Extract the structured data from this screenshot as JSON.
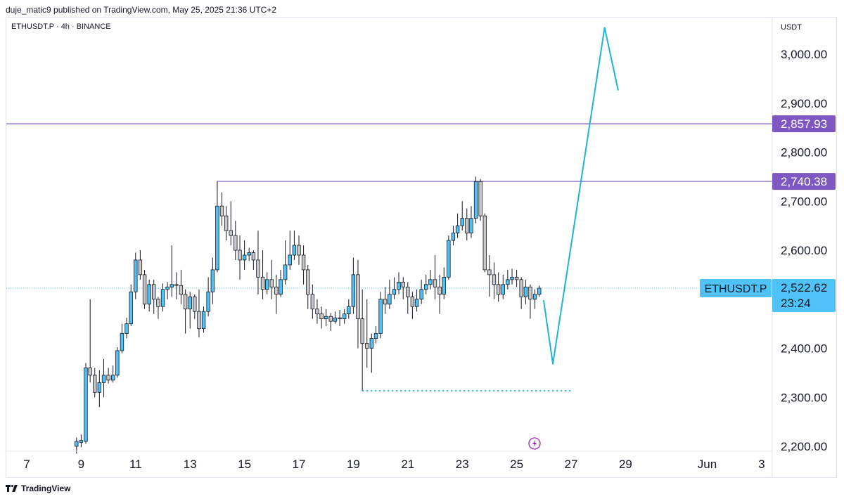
{
  "header": {
    "published": "duje_matic9 published on TradingView.com, May 25, 2025 21:36 UTC+2",
    "symbol_line": "ETHUSDT.P · 4h · BINANCE"
  },
  "footer": {
    "brand": "TradingView"
  },
  "colors": {
    "up": "#4fc3f7",
    "down": "#c9c9c9",
    "wick": "#131722",
    "level": "#7e57c2",
    "projection": "#1fb5d0",
    "price_tag": "#4fc3f7"
  },
  "chart_data": {
    "type": "candlestick",
    "currency": "USDT",
    "y_ticks": [
      "3,000.00",
      "2,900.00",
      "2,800.00",
      "2,700.00",
      "2,600.00",
      "2,400.00",
      "2,300.00",
      "2,200.00"
    ],
    "y_tick_values": [
      3000,
      2900,
      2800,
      2700,
      2600,
      2400,
      2300,
      2200
    ],
    "x_ticks": [
      "7",
      "9",
      "11",
      "13",
      "15",
      "17",
      "19",
      "21",
      "23",
      "25",
      "27",
      "29",
      "Jun",
      "3"
    ],
    "levels": [
      {
        "price": 2857.93,
        "label": "2,857.93"
      },
      {
        "price": 2740.38,
        "label": "2,740.38"
      }
    ],
    "support_price": 2313,
    "current": {
      "symbol": "ETHUSDT.P",
      "price_label": "2,522.62",
      "price": 2522.62,
      "countdown": "23:24"
    },
    "projection_path": [
      {
        "day": 25.99,
        "price": 2498
      },
      {
        "day": 26.33,
        "price": 2368
      },
      {
        "day": 28.23,
        "price": 3054
      },
      {
        "day": 28.73,
        "price": 2926
      }
    ],
    "candles": [
      [
        8.83,
        2200,
        2210,
        2185,
        2218
      ],
      [
        9.0,
        2208,
        2212,
        2198,
        2224
      ],
      [
        9.17,
        2210,
        2360,
        2205,
        2370
      ],
      [
        9.33,
        2360,
        2345,
        2330,
        2500
      ],
      [
        9.5,
        2345,
        2310,
        2300,
        2360
      ],
      [
        9.67,
        2310,
        2330,
        2280,
        2355
      ],
      [
        9.83,
        2330,
        2345,
        2300,
        2378
      ],
      [
        10.0,
        2345,
        2335,
        2328,
        2360
      ],
      [
        10.17,
        2335,
        2345,
        2330,
        2365
      ],
      [
        10.33,
        2345,
        2395,
        2340,
        2402
      ],
      [
        10.5,
        2395,
        2430,
        2390,
        2450
      ],
      [
        10.67,
        2430,
        2450,
        2420,
        2462
      ],
      [
        10.83,
        2450,
        2515,
        2445,
        2530
      ],
      [
        11.0,
        2515,
        2580,
        2500,
        2595
      ],
      [
        11.17,
        2580,
        2550,
        2540,
        2600
      ],
      [
        11.33,
        2550,
        2490,
        2480,
        2560
      ],
      [
        11.5,
        2490,
        2530,
        2475,
        2540
      ],
      [
        11.67,
        2530,
        2500,
        2470,
        2540
      ],
      [
        11.83,
        2500,
        2485,
        2460,
        2505
      ],
      [
        12.0,
        2485,
        2520,
        2475,
        2532
      ],
      [
        12.17,
        2520,
        2525,
        2500,
        2535
      ],
      [
        12.33,
        2525,
        2530,
        2505,
        2610
      ],
      [
        12.5,
        2530,
        2528,
        2500,
        2555
      ],
      [
        12.67,
        2528,
        2510,
        2490,
        2560
      ],
      [
        12.83,
        2510,
        2480,
        2430,
        2520
      ],
      [
        13.0,
        2480,
        2505,
        2440,
        2515
      ],
      [
        13.17,
        2505,
        2475,
        2460,
        2510
      ],
      [
        13.33,
        2475,
        2440,
        2422,
        2520
      ],
      [
        13.5,
        2440,
        2475,
        2432,
        2485
      ],
      [
        13.67,
        2475,
        2515,
        2465,
        2545
      ],
      [
        13.83,
        2515,
        2560,
        2490,
        2585
      ],
      [
        14.0,
        2560,
        2690,
        2555,
        2740
      ],
      [
        14.17,
        2690,
        2670,
        2650,
        2718
      ],
      [
        14.33,
        2670,
        2640,
        2620,
        2690
      ],
      [
        14.5,
        2640,
        2630,
        2610,
        2700
      ],
      [
        14.67,
        2630,
        2600,
        2580,
        2660
      ],
      [
        14.83,
        2600,
        2580,
        2540,
        2630
      ],
      [
        15.0,
        2580,
        2590,
        2560,
        2620
      ],
      [
        15.17,
        2590,
        2595,
        2578,
        2605
      ],
      [
        15.33,
        2595,
        2580,
        2560,
        2600
      ],
      [
        15.5,
        2580,
        2545,
        2510,
        2640
      ],
      [
        15.67,
        2545,
        2520,
        2500,
        2600
      ],
      [
        15.83,
        2520,
        2540,
        2510,
        2555
      ],
      [
        16.0,
        2540,
        2525,
        2500,
        2580
      ],
      [
        16.17,
        2525,
        2510,
        2470,
        2550
      ],
      [
        16.33,
        2510,
        2540,
        2505,
        2560
      ],
      [
        16.5,
        2540,
        2570,
        2530,
        2620
      ],
      [
        16.67,
        2570,
        2590,
        2560,
        2640
      ],
      [
        16.83,
        2590,
        2610,
        2580,
        2640
      ],
      [
        17.0,
        2610,
        2590,
        2570,
        2630
      ],
      [
        17.17,
        2590,
        2560,
        2530,
        2610
      ],
      [
        17.33,
        2560,
        2510,
        2480,
        2570
      ],
      [
        17.5,
        2510,
        2480,
        2460,
        2530
      ],
      [
        17.67,
        2480,
        2470,
        2450,
        2500
      ],
      [
        17.83,
        2470,
        2460,
        2440,
        2485
      ],
      [
        18.0,
        2460,
        2465,
        2445,
        2480
      ],
      [
        18.17,
        2465,
        2455,
        2435,
        2472
      ],
      [
        18.33,
        2455,
        2462,
        2450,
        2475
      ],
      [
        18.5,
        2462,
        2460,
        2445,
        2478
      ],
      [
        18.67,
        2460,
        2470,
        2450,
        2480
      ],
      [
        18.83,
        2470,
        2485,
        2460,
        2500
      ],
      [
        19.0,
        2485,
        2550,
        2470,
        2585
      ],
      [
        19.17,
        2550,
        2460,
        2400,
        2580
      ],
      [
        19.33,
        2460,
        2410,
        2313,
        2520
      ],
      [
        19.5,
        2410,
        2400,
        2360,
        2500
      ],
      [
        19.67,
        2400,
        2420,
        2350,
        2430
      ],
      [
        19.83,
        2420,
        2430,
        2410,
        2445
      ],
      [
        20.0,
        2430,
        2500,
        2420,
        2515
      ],
      [
        20.17,
        2500,
        2490,
        2470,
        2525
      ],
      [
        20.33,
        2490,
        2510,
        2480,
        2540
      ],
      [
        20.5,
        2510,
        2520,
        2500,
        2545
      ],
      [
        20.67,
        2520,
        2535,
        2510,
        2555
      ],
      [
        20.83,
        2535,
        2525,
        2500,
        2545
      ],
      [
        21.0,
        2525,
        2505,
        2470,
        2535
      ],
      [
        21.17,
        2505,
        2485,
        2460,
        2515
      ],
      [
        21.33,
        2485,
        2500,
        2475,
        2520
      ],
      [
        21.5,
        2500,
        2520,
        2490,
        2540
      ],
      [
        21.67,
        2520,
        2530,
        2510,
        2550
      ],
      [
        21.83,
        2530,
        2540,
        2520,
        2560
      ],
      [
        22.0,
        2540,
        2525,
        2500,
        2590
      ],
      [
        22.17,
        2525,
        2510,
        2470,
        2550
      ],
      [
        22.33,
        2510,
        2545,
        2500,
        2565
      ],
      [
        22.5,
        2545,
        2620,
        2540,
        2630
      ],
      [
        22.67,
        2620,
        2635,
        2610,
        2650
      ],
      [
        22.83,
        2635,
        2650,
        2625,
        2675
      ],
      [
        23.0,
        2650,
        2665,
        2640,
        2700
      ],
      [
        23.17,
        2665,
        2635,
        2620,
        2685
      ],
      [
        23.33,
        2635,
        2665,
        2625,
        2690
      ],
      [
        23.5,
        2665,
        2740,
        2655,
        2750
      ],
      [
        23.67,
        2740,
        2670,
        2660,
        2745
      ],
      [
        23.83,
        2670,
        2560,
        2555,
        2675
      ],
      [
        24.0,
        2560,
        2550,
        2505,
        2590
      ],
      [
        24.17,
        2550,
        2530,
        2500,
        2575
      ],
      [
        24.33,
        2530,
        2510,
        2495,
        2555
      ],
      [
        24.5,
        2510,
        2530,
        2500,
        2550
      ],
      [
        24.67,
        2530,
        2540,
        2520,
        2560
      ],
      [
        24.83,
        2540,
        2545,
        2530,
        2562
      ],
      [
        25.0,
        2545,
        2540,
        2525,
        2560
      ],
      [
        25.17,
        2540,
        2505,
        2480,
        2545
      ],
      [
        25.33,
        2505,
        2525,
        2490,
        2540
      ],
      [
        25.5,
        2525,
        2500,
        2460,
        2530
      ],
      [
        25.67,
        2500,
        2510,
        2480,
        2520
      ],
      [
        25.83,
        2510,
        2522.62,
        2505,
        2528
      ]
    ]
  }
}
